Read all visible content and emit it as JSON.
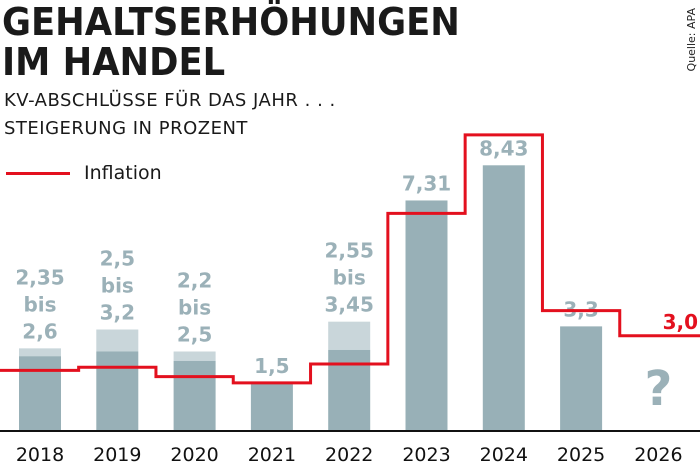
{
  "header": {
    "title_line1": "GEHALTSERHÖHUNGEN",
    "title_line2": "IM HANDEL",
    "subtitle_line1": "KV-ABSCHLÜSSE FÜR DAS JAHR . . .",
    "subtitle_line2": "STEIGERUNG IN PROZENT",
    "source": "Quelle: APA"
  },
  "chart_data": {
    "type": "bar",
    "title": "Gehaltserhöhungen im Handel",
    "ylabel": "Steigerung in Prozent",
    "ylim": [
      0,
      9.5
    ],
    "grid": false,
    "legend": [
      {
        "name": "Inflation",
        "color": "#e3101e",
        "placement": "top-left"
      }
    ],
    "categories": [
      "2018",
      "2019",
      "2020",
      "2021",
      "2022",
      "2023",
      "2024",
      "2025",
      "2026"
    ],
    "series": [
      {
        "name": "KV-Abschluss min",
        "values": [
          2.35,
          2.5,
          2.2,
          1.5,
          2.55,
          7.31,
          8.43,
          3.3,
          null
        ],
        "color": "#98b0b7"
      },
      {
        "name": "KV-Abschluss max",
        "values": [
          2.6,
          3.2,
          2.5,
          1.5,
          3.45,
          7.31,
          8.43,
          3.3,
          null
        ],
        "color": "#c9d6da"
      },
      {
        "name": "Inflation",
        "type": "step",
        "values": [
          1.9,
          2.0,
          1.7,
          1.5,
          2.1,
          6.9,
          9.4,
          3.8,
          3.0
        ],
        "color": "#e3101e"
      }
    ],
    "bar_labels": [
      [
        "2,35",
        "bis",
        "2,6"
      ],
      [
        "2,5",
        "bis",
        "3,2"
      ],
      [
        "2,2",
        "bis",
        "2,5"
      ],
      [
        "1,5"
      ],
      [
        "2,55",
        "bis",
        "3,45"
      ],
      [
        "7,31"
      ],
      [
        "8,43"
      ],
      [
        "3,3"
      ],
      [
        "?"
      ]
    ],
    "inflation_label": "3,0",
    "colors": {
      "bar": "#98b0b7",
      "bar_range": "#c9d6da",
      "label": "#9bb1b8",
      "inflation": "#e3101e",
      "axis": "#111111"
    }
  }
}
